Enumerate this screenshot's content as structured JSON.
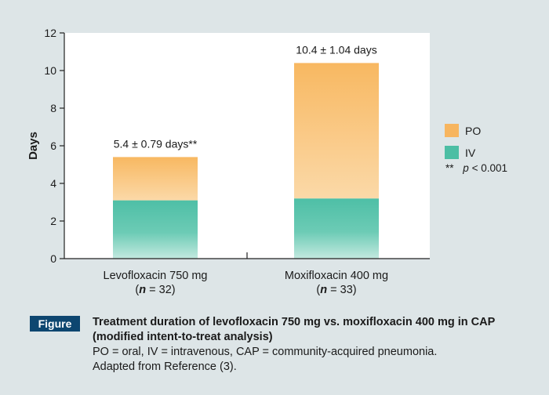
{
  "chart_data": {
    "type": "bar",
    "stacked": true,
    "ylabel": "Days",
    "ylim": [
      0,
      12
    ],
    "yticks": [
      0,
      2,
      4,
      6,
      8,
      10,
      12
    ],
    "grid": false,
    "legend_position": "right",
    "categories": [
      {
        "name": "Levofloxacin 750 mg",
        "n_prefix": "(",
        "n_italic": "n",
        "n_suffix": " = 32)"
      },
      {
        "name": "Moxifloxacin 400 mg",
        "n_prefix": "(",
        "n_italic": "n",
        "n_suffix": " = 33)"
      }
    ],
    "series": [
      {
        "name": "IV",
        "color": "#4cbea4",
        "values": [
          3.1,
          3.2
        ]
      },
      {
        "name": "PO",
        "color": "#f7b55f",
        "values": [
          2.3,
          7.2
        ]
      }
    ],
    "totals": [
      5.4,
      10.4
    ],
    "data_labels": [
      "5.4 ± 0.79 days**",
      "10.4 ± 1.04 days"
    ],
    "legend": [
      {
        "label": "PO",
        "color": "#f7b55f"
      },
      {
        "label": "IV",
        "color": "#4cbea4"
      }
    ],
    "footnote": {
      "symbol": "**",
      "italic": "p",
      "text": " < 0.001"
    }
  },
  "caption": {
    "badge": "Figure",
    "title": "Treatment duration of levofloxacin 750 mg vs. moxifloxacin 400 mg in CAP (modified intent-to-treat analysis)",
    "line1": "PO = oral, IV = intravenous, CAP = community-acquired pneumonia.",
    "line2": "Adapted from Reference (3)."
  }
}
